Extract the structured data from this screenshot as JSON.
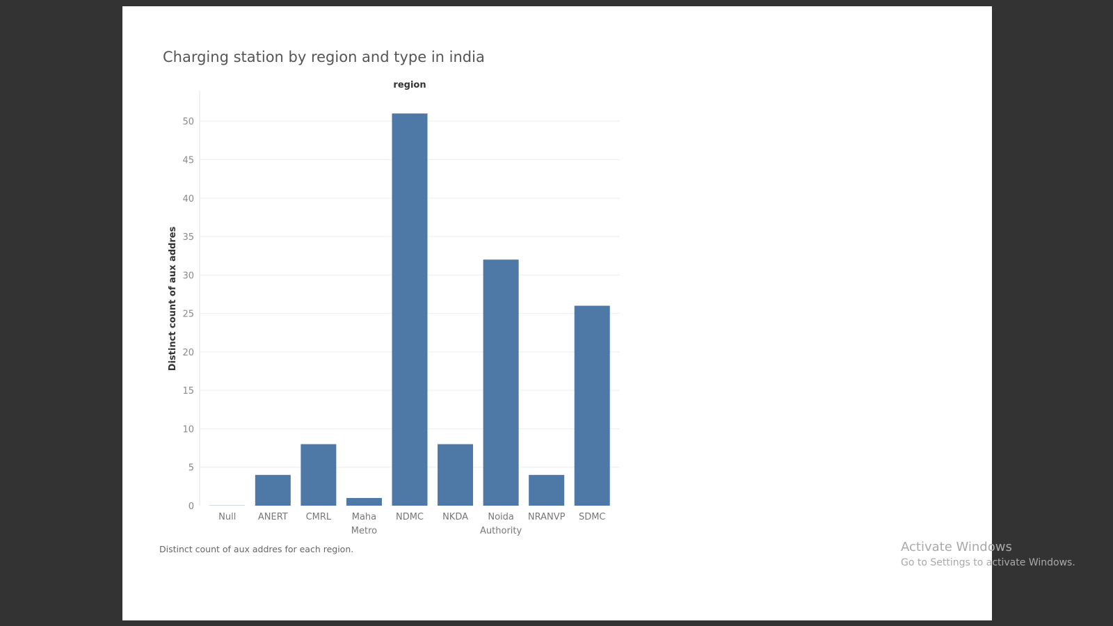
{
  "chart_data": {
    "type": "bar",
    "title": "Charging station by region and type in india",
    "header_label": "region",
    "xlabel": "",
    "ylabel": "Distinct count of aux addres",
    "categories": [
      [
        "Null"
      ],
      [
        "ANERT"
      ],
      [
        "CMRL"
      ],
      [
        "Maha",
        "Metro"
      ],
      [
        "NDMC"
      ],
      [
        "NKDA"
      ],
      [
        "Noida",
        "Authority"
      ],
      [
        "NRANVP"
      ],
      [
        "SDMC"
      ]
    ],
    "values": [
      0,
      4,
      8,
      1,
      51,
      8,
      32,
      4,
      26
    ],
    "ylim": [
      0,
      54
    ],
    "yticks": [
      0,
      5,
      10,
      15,
      20,
      25,
      30,
      35,
      40,
      45,
      50
    ],
    "grid": true,
    "bar_color": "#4e79a7",
    "caption": "Distinct count of aux addres for each region."
  },
  "colors": {
    "background": "#333333",
    "sheet": "#ffffff",
    "bar": "#4e79a7",
    "grid": "#eeeeee"
  },
  "watermark": {
    "title": "Activate Windows",
    "subtitle": "Go to Settings to activate Windows."
  }
}
